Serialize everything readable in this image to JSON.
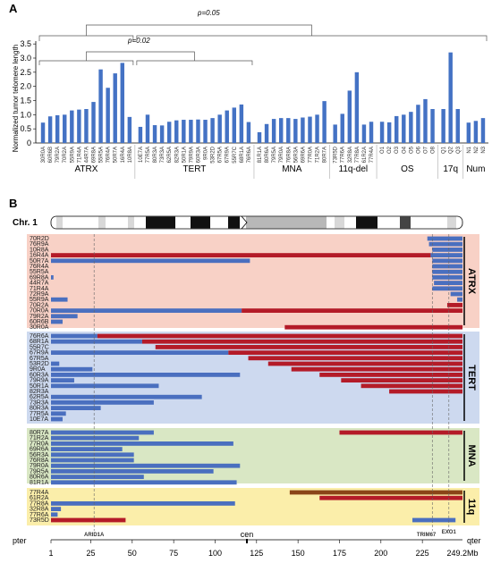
{
  "chart_data": [
    {
      "type": "bar",
      "panel": "A",
      "ylabel": "Normalized tumor telomere length",
      "yticks": [
        "0",
        "0.5",
        "1.0",
        "1.5",
        "2.0",
        "2.5",
        "3.0",
        "3.5"
      ],
      "ylim": [
        0,
        3.6
      ],
      "groups": [
        {
          "name": "ATRX",
          "samples": [
            "30R0A",
            "60R6B",
            "79R2A",
            "70R2A",
            "55R9A",
            "71R4A",
            "44R7A",
            "69R8A",
            "55R5A",
            "76R4A",
            "50R7A",
            "16R4A",
            "10R8A"
          ],
          "values": [
            0.72,
            0.94,
            0.98,
            1.0,
            1.15,
            1.18,
            1.2,
            1.45,
            2.6,
            1.95,
            2.46,
            2.83,
            0.92
          ]
        },
        {
          "name": "TERT",
          "samples": [
            "10E7A",
            "77R5A",
            "80R3A",
            "73R3A",
            "62R5A",
            "82R3A",
            "50R1A",
            "79R9A",
            "60R3A",
            "9R0A",
            "53R2D",
            "67R5A",
            "67R9A",
            "55R7C",
            "68R1A",
            "76R6A"
          ],
          "values": [
            0.57,
            1.0,
            0.63,
            0.62,
            0.75,
            0.8,
            0.82,
            0.82,
            0.83,
            0.82,
            0.88,
            1.0,
            1.15,
            1.25,
            1.36,
            0.74
          ]
        },
        {
          "name": "MNA",
          "samples": [
            "81R1A",
            "80R6A",
            "79R5A",
            "79R0A",
            "76R8A",
            "56R3A",
            "69R6A",
            "77R0A",
            "71R2A",
            "80R7A"
          ],
          "values": [
            0.38,
            0.67,
            0.85,
            0.88,
            0.88,
            0.85,
            0.9,
            0.93,
            1.0,
            1.48
          ]
        },
        {
          "name": "11q-del",
          "samples": [
            "73R5D",
            "77R6A",
            "32R8A",
            "77R8A",
            "61R2A",
            "77R4A"
          ],
          "values": [
            0.65,
            1.03,
            1.85,
            2.5,
            0.65,
            0.75
          ]
        },
        {
          "name": "OS",
          "samples": [
            "O1",
            "O2",
            "O3",
            "O4",
            "O5",
            "O6",
            "O7",
            "O8"
          ],
          "values": [
            0.75,
            0.73,
            0.95,
            1.0,
            1.1,
            1.35,
            1.55,
            1.2
          ]
        },
        {
          "name": "17q",
          "samples": [
            "Q1",
            "Q2",
            "Q3"
          ],
          "values": [
            1.2,
            3.2,
            1.2
          ]
        },
        {
          "name": "Num",
          "samples": [
            "N1",
            "N2",
            "N3"
          ],
          "values": [
            0.72,
            0.78,
            0.88
          ]
        }
      ],
      "annotations": [
        "p=0.05",
        "p=0.02"
      ]
    },
    {
      "type": "segments",
      "panel": "B",
      "chromosome": "Chr. 1",
      "x_axis": {
        "ticks": [
          1,
          25,
          50,
          75,
          100,
          125,
          150,
          175,
          200,
          225
        ],
        "end_label": "249.2Mb",
        "left": "pter",
        "right": "qter",
        "centromere": "cen",
        "unit_max": 249.2
      },
      "genes": [
        {
          "name": "ARID1A",
          "pos": 27
        },
        {
          "name": "TRIM67",
          "pos": 231
        },
        {
          "name": "EXO1",
          "pos": 241
        }
      ],
      "legend": {
        "blue": "#4a6fbf",
        "red": "#b41b28",
        "brown": "#8a4518"
      },
      "groups": [
        {
          "name": "ATRX",
          "bg": "#f8d1c6",
          "rows": [
            {
              "id": "70R2D",
              "segs": [
                [
                  228,
                  249.2,
                  "b"
                ]
              ]
            },
            {
              "id": "76R9A",
              "segs": [
                [
                  229,
                  249.2,
                  "b"
                ]
              ]
            },
            {
              "id": "10R8A",
              "segs": [
                [
                  231,
                  249.2,
                  "b"
                ]
              ]
            },
            {
              "id": "16R4A",
              "segs": [
                [
                  1,
                  230,
                  "r"
                ],
                [
                  230,
                  249.2,
                  "b"
                ]
              ]
            },
            {
              "id": "50R7A",
              "segs": [
                [
                  1,
                  121,
                  "b"
                ],
                [
                  231,
                  249.2,
                  "b"
                ]
              ]
            },
            {
              "id": "76R4A",
              "segs": [
                [
                  231,
                  249.2,
                  "b"
                ]
              ]
            },
            {
              "id": "55R5A",
              "segs": [
                [
                  231,
                  249.2,
                  "b"
                ]
              ]
            },
            {
              "id": "69R8A",
              "segs": [
                [
                  1,
                  2.5,
                  "b"
                ],
                [
                  231,
                  249.2,
                  "b"
                ]
              ]
            },
            {
              "id": "44R7A",
              "segs": [
                [
                  232,
                  249.2,
                  "b"
                ]
              ]
            },
            {
              "id": "71R4A",
              "segs": [
                [
                  231,
                  249.2,
                  "b"
                ]
              ]
            },
            {
              "id": "72R9A",
              "segs": [
                [
                  242,
                  249.2,
                  "b"
                ]
              ]
            },
            {
              "id": "55R9A",
              "segs": [
                [
                  1,
                  11,
                  "b"
                ],
                [
                  246,
                  249.2,
                  "b"
                ]
              ]
            },
            {
              "id": "70R2A",
              "segs": [
                [
                  240,
                  249.2,
                  "r"
                ]
              ]
            },
            {
              "id": "70R0A",
              "segs": [
                [
                  1,
                  116,
                  "b"
                ],
                [
                  116,
                  249.2,
                  "r"
                ]
              ]
            },
            {
              "id": "79R2A",
              "segs": [
                [
                  1,
                  17,
                  "b"
                ]
              ]
            },
            {
              "id": "60R6B",
              "segs": [
                [
                  1,
                  8,
                  "b"
                ]
              ]
            },
            {
              "id": "30R0A",
              "segs": [
                [
                  142,
                  249.2,
                  "r"
                ]
              ]
            }
          ]
        },
        {
          "name": "TERT",
          "bg": "#cdd9ef",
          "rows": [
            {
              "id": "76R6A",
              "segs": [
                [
                  1,
                  29,
                  "b"
                ],
                [
                  29,
                  249.2,
                  "r"
                ]
              ]
            },
            {
              "id": "68R1A",
              "segs": [
                [
                  1,
                  56,
                  "b"
                ],
                [
                  56,
                  249.2,
                  "r"
                ]
              ]
            },
            {
              "id": "55R7C",
              "segs": [
                [
                  64,
                  249.2,
                  "r"
                ]
              ]
            },
            {
              "id": "67R9A",
              "segs": [
                [
                  1,
                  108,
                  "b"
                ],
                [
                  108,
                  249.2,
                  "r"
                ]
              ]
            },
            {
              "id": "67R5A",
              "segs": [
                [
                  120,
                  249.2,
                  "r"
                ]
              ]
            },
            {
              "id": "53R2D",
              "segs": [
                [
                  1,
                  6,
                  "b"
                ],
                [
                  132,
                  249.2,
                  "r"
                ]
              ]
            },
            {
              "id": "9R0A",
              "segs": [
                [
                  1,
                  26,
                  "b"
                ],
                [
                  146,
                  249.2,
                  "r"
                ]
              ]
            },
            {
              "id": "60R3A",
              "segs": [
                [
                  1,
                  115,
                  "b"
                ],
                [
                  163,
                  249.2,
                  "r"
                ]
              ]
            },
            {
              "id": "79R9A",
              "segs": [
                [
                  1,
                  15,
                  "b"
                ],
                [
                  176,
                  249.2,
                  "r"
                ]
              ]
            },
            {
              "id": "50R1A",
              "segs": [
                [
                  1,
                  66,
                  "b"
                ],
                [
                  188,
                  249.2,
                  "r"
                ]
              ]
            },
            {
              "id": "82R3A",
              "segs": [
                [
                  205,
                  249.2,
                  "r"
                ]
              ]
            },
            {
              "id": "62R5A",
              "segs": [
                [
                  1,
                  92,
                  "b"
                ]
              ]
            },
            {
              "id": "73R3A",
              "segs": [
                [
                  1,
                  63,
                  "b"
                ]
              ]
            },
            {
              "id": "80R3A",
              "segs": [
                [
                  1,
                  31,
                  "b"
                ]
              ]
            },
            {
              "id": "77R5A",
              "segs": [
                [
                  1,
                  10,
                  "b"
                ]
              ]
            },
            {
              "id": "10E7A",
              "segs": [
                [
                  1,
                  8,
                  "b"
                ]
              ]
            }
          ]
        },
        {
          "name": "MNA",
          "bg": "#d9e7c4",
          "rows": [
            {
              "id": "80R7A",
              "segs": [
                [
                  1,
                  63,
                  "b"
                ],
                [
                  175,
                  249.2,
                  "r"
                ]
              ]
            },
            {
              "id": "71R2A",
              "segs": [
                [
                  1,
                  54,
                  "b"
                ]
              ]
            },
            {
              "id": "77R0A",
              "segs": [
                [
                  1,
                  111,
                  "b"
                ]
              ]
            },
            {
              "id": "69R6A",
              "segs": [
                [
                  1,
                  44,
                  "b"
                ]
              ]
            },
            {
              "id": "56R3A",
              "segs": [
                [
                  1,
                  51,
                  "b"
                ]
              ]
            },
            {
              "id": "76R8A",
              "segs": [
                [
                  1,
                  51,
                  "b"
                ]
              ]
            },
            {
              "id": "79R0A",
              "segs": [
                [
                  1,
                  115,
                  "b"
                ]
              ]
            },
            {
              "id": "79R5A",
              "segs": [
                [
                  1,
                  99,
                  "b"
                ]
              ]
            },
            {
              "id": "80R6A",
              "segs": [
                [
                  1,
                  57,
                  "b"
                ]
              ]
            },
            {
              "id": "81R1A",
              "segs": [
                [
                  1,
                  113,
                  "b"
                ]
              ]
            }
          ]
        },
        {
          "name": "11q",
          "bg": "#fbeeaa",
          "rows": [
            {
              "id": "77R4A",
              "segs": [
                [
                  145,
                  249.2,
                  "br"
                ]
              ]
            },
            {
              "id": "61R2A",
              "segs": [
                [
                  163,
                  249.2,
                  "r"
                ]
              ]
            },
            {
              "id": "77R8A",
              "segs": [
                [
                  1,
                  112,
                  "b"
                ]
              ]
            },
            {
              "id": "32R8A",
              "segs": [
                [
                  1,
                  7,
                  "b"
                ]
              ]
            },
            {
              "id": "77R6A",
              "segs": [
                [
                  1,
                  5,
                  "b"
                ]
              ]
            },
            {
              "id": "73R5D",
              "segs": [
                [
                  1,
                  46,
                  "r"
                ],
                [
                  219,
                  245,
                  "b"
                ]
              ]
            }
          ]
        }
      ]
    }
  ]
}
